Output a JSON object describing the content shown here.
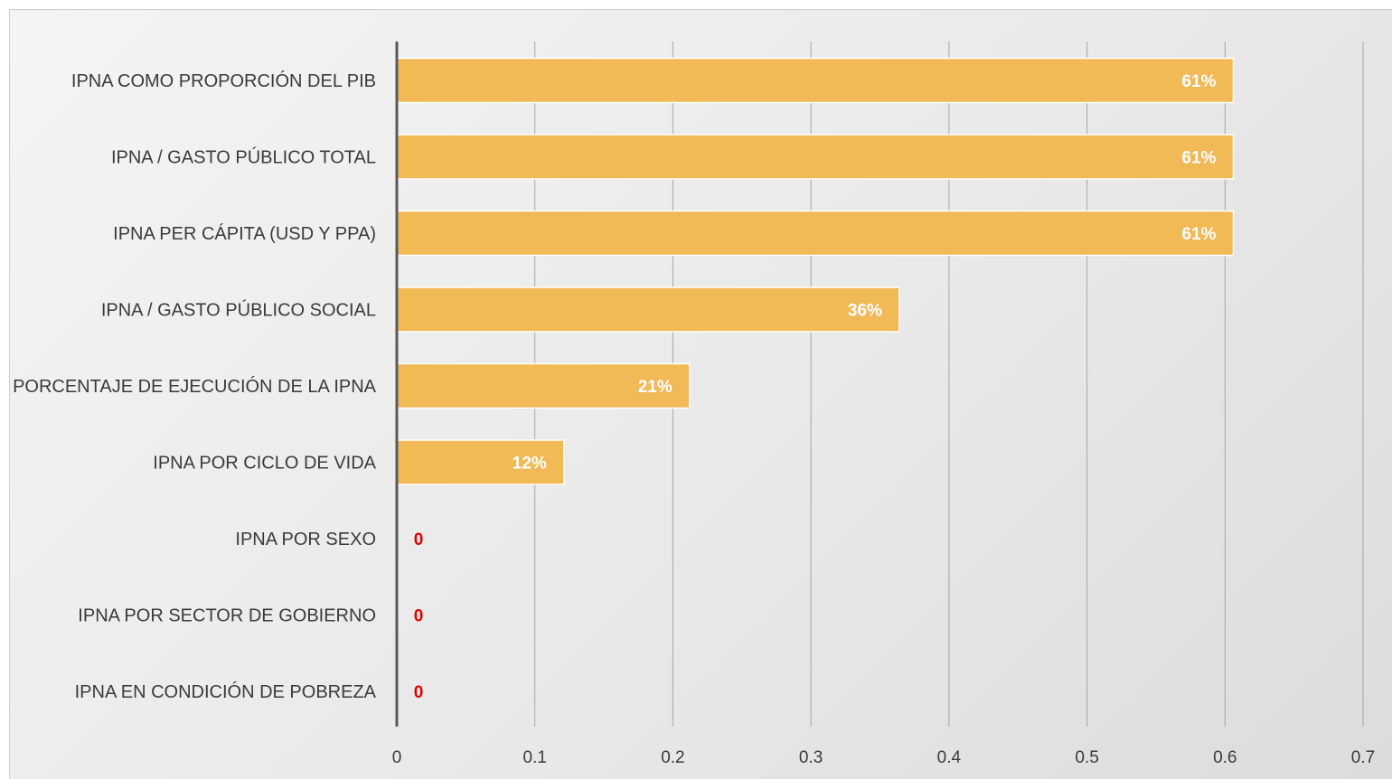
{
  "chart_data": {
    "type": "bar",
    "orientation": "horizontal",
    "categories": [
      "IPNA COMO PROPORCIÓN DEL PIB",
      "IPNA / GASTO PÚBLICO TOTAL",
      "IPNA PER CÁPITA (USD Y PPA)",
      "IPNA / GASTO PÚBLICO SOCIAL",
      "PORCENTAJE DE EJECUCIÓN DE LA IPNA",
      "IPNA POR CICLO DE VIDA",
      "IPNA POR SEXO",
      "IPNA POR SECTOR DE GOBIERNO",
      "IPNA EN CONDICIÓN DE POBREZA"
    ],
    "values": [
      0.606,
      0.606,
      0.606,
      0.364,
      0.212,
      0.121,
      0,
      0,
      0
    ],
    "data_labels": [
      "61%",
      "61%",
      "61%",
      "36%",
      "21%",
      "12%",
      "0",
      "0",
      "0"
    ],
    "xlim": [
      0,
      0.7
    ],
    "xticks": [
      "0",
      "0.1",
      "0.2",
      "0.3",
      "0.4",
      "0.5",
      "0.6",
      "0.7"
    ],
    "title": "",
    "xlabel": "",
    "ylabel": "",
    "grid": true,
    "colors": {
      "bar": "#f2b957",
      "bar_label": "#ffffff",
      "zero_label": "#e00000",
      "grid": "#a6a6a6",
      "axis": "#595959"
    }
  }
}
